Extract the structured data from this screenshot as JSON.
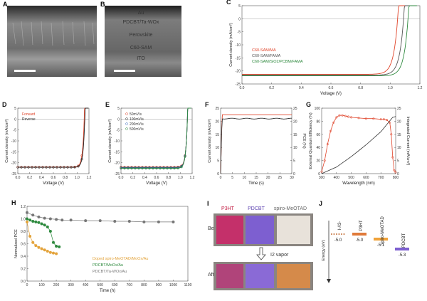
{
  "panel_letters": [
    "A",
    "B",
    "C",
    "D",
    "E",
    "F",
    "G",
    "H",
    "I",
    "J"
  ],
  "panel_a": {
    "layers": [
      "Au",
      "PDCBT/Ta-WOx",
      "Perovskite",
      "C60-SAM",
      "ITO"
    ]
  },
  "chart_data": [
    {
      "panel": "C",
      "type": "line",
      "xlabel": "Voltage (V)",
      "ylabel": "Current density (mA/cm²)",
      "xlim": [
        0.0,
        1.2
      ],
      "ylim": [
        -25,
        5
      ],
      "xticks": [
        "0.0",
        "0.2",
        "0.4",
        "0.6",
        "0.8",
        "1.0",
        "1.2"
      ],
      "yticks": [
        "-25",
        "-20",
        "-15",
        "-10",
        "-5",
        "0",
        "5"
      ],
      "series": [
        {
          "name": "C60-SAM/MA",
          "color": "#e0442a",
          "jsc": -21.3,
          "voc": 1.05
        },
        {
          "name": "C60-SAM/FAMA",
          "color": "#555555",
          "jsc": -21.6,
          "voc": 1.09
        },
        {
          "name": "C60-SAM/SiO2/PCBM/FAMA",
          "color": "#2f8a3f",
          "jsc": -21.9,
          "voc": 1.12
        }
      ]
    },
    {
      "panel": "D",
      "type": "line",
      "xlabel": "Voltage (V)",
      "ylabel": "Current density (mA/cm²)",
      "xlim": [
        0.0,
        1.2
      ],
      "ylim": [
        -25,
        5
      ],
      "xticks": [
        "0.0",
        "0.2",
        "0.4",
        "0.6",
        "0.8",
        "1.0",
        "1.2"
      ],
      "yticks": [
        "-25",
        "-20",
        "-15",
        "-10",
        "-5",
        "0",
        "5"
      ],
      "legend": [
        "Forward",
        "Reverse"
      ],
      "series": [
        {
          "name": "Forward",
          "color": "#e0442a",
          "jsc": -22.0,
          "voc": 1.12
        },
        {
          "name": "Reverse",
          "color": "#222222",
          "jsc": -22.1,
          "voc": 1.13
        }
      ]
    },
    {
      "panel": "E",
      "type": "line",
      "xlabel": "Voltage (V)",
      "ylabel": "Current density (mA/cm²)",
      "xlim": [
        0.0,
        1.2
      ],
      "ylim": [
        -25,
        5
      ],
      "xticks": [
        "0.0",
        "0.2",
        "0.4",
        "0.6",
        "0.8",
        "1.0",
        "1.2"
      ],
      "yticks": [
        "-25",
        "-20",
        "-15",
        "-10",
        "-5",
        "0",
        "5"
      ],
      "series": [
        {
          "name": "50mV/s",
          "color": "#e0442a",
          "jsc": -22.0,
          "voc": 1.12
        },
        {
          "name": "100mV/s",
          "color": "#333333",
          "jsc": -22.2,
          "voc": 1.12
        },
        {
          "name": "200mV/s",
          "color": "#3f6fc0",
          "jsc": -22.4,
          "voc": 1.12
        },
        {
          "name": "500mV/s",
          "color": "#2f8a3f",
          "jsc": -22.6,
          "voc": 1.12
        }
      ]
    },
    {
      "panel": "F",
      "type": "line",
      "xlabel": "Time (s)",
      "ylabel_left": "Current density (mA/cm²)",
      "ylabel_right": "PCE (%)",
      "xlim": [
        0,
        30
      ],
      "ylim": [
        0,
        25
      ],
      "xticks": [
        "0",
        "5",
        "10",
        "15",
        "20",
        "25",
        "30"
      ],
      "yticks": [
        "0",
        "5",
        "10",
        "15",
        "20",
        "25"
      ],
      "yticks_right": [
        "0",
        "5",
        "10",
        "15",
        "20",
        "25"
      ],
      "series": [
        {
          "name": "PCE",
          "color": "#e0442a",
          "steady": 22.5
        },
        {
          "name": "Current density",
          "color": "#333333",
          "steady": 21.0
        }
      ]
    },
    {
      "panel": "G",
      "type": "line",
      "xlabel": "Wavelength (nm)",
      "ylabel_left": "External Quantum Efficiency (%)",
      "ylabel_right": "Integrated Current (mA/cm²)",
      "xlim": [
        300,
        800
      ],
      "ylim": [
        0,
        100
      ],
      "ylim_right": [
        0,
        25
      ],
      "xticks": [
        "300",
        "400",
        "500",
        "600",
        "700",
        "800"
      ],
      "yticks": [
        "0",
        "20",
        "40",
        "60",
        "80",
        "100"
      ],
      "yticks_right": [
        "0",
        "5",
        "10",
        "15",
        "20",
        "25"
      ],
      "eqe": {
        "x": [
          300,
          320,
          340,
          360,
          380,
          400,
          420,
          440,
          460,
          480,
          500,
          550,
          600,
          650,
          700,
          720,
          740,
          760,
          770,
          780,
          790,
          800
        ],
        "y": [
          3,
          20,
          45,
          65,
          78,
          86,
          89,
          89,
          88,
          87,
          86,
          85,
          84,
          84,
          83,
          83,
          82,
          78,
          60,
          25,
          5,
          2
        ]
      },
      "integrated": {
        "x": [
          300,
          400,
          500,
          600,
          700,
          780,
          800
        ],
        "y": [
          0,
          2.5,
          6.5,
          11,
          16,
          21.5,
          21.8
        ]
      }
    },
    {
      "panel": "H",
      "type": "scatter",
      "xlabel": "Time (h)",
      "ylabel": "Normalized PCE",
      "xlim": [
        0,
        1100
      ],
      "ylim": [
        0.0,
        1.2
      ],
      "xticks": [
        "0",
        "100",
        "200",
        "300",
        "400",
        "500",
        "600",
        "700",
        "800",
        "900",
        "1000",
        "1100"
      ],
      "yticks": [
        "0.0",
        "0.2",
        "0.4",
        "0.6",
        "0.8",
        "1.0",
        "1.2"
      ],
      "series": [
        {
          "name": "Doped spiro-MeOTAD/MoOx/Au",
          "color": "#e3a33b",
          "x": [
            0,
            20,
            40,
            60,
            80,
            100,
            120,
            140,
            160,
            180,
            200
          ],
          "y": [
            0.95,
            0.72,
            0.62,
            0.57,
            0.54,
            0.52,
            0.5,
            0.48,
            0.46,
            0.45,
            0.44
          ]
        },
        {
          "name": "PDCBT/MoOx/Au",
          "color": "#2f8a3f",
          "x": [
            0,
            20,
            40,
            60,
            80,
            100,
            120,
            140,
            160,
            180,
            200,
            220
          ],
          "y": [
            1.0,
            0.98,
            0.96,
            0.95,
            0.94,
            0.92,
            0.9,
            0.87,
            0.8,
            0.62,
            0.56,
            0.55
          ]
        },
        {
          "name": "PDCBT/Ta-WOx/Au",
          "color": "#777777",
          "x": [
            0,
            40,
            80,
            120,
            160,
            200,
            240,
            300,
            400,
            500,
            600,
            700,
            800,
            900,
            1000
          ],
          "y": [
            1.1,
            1.06,
            1.03,
            1.01,
            1.0,
            0.99,
            0.98,
            0.98,
            0.97,
            0.97,
            0.96,
            0.96,
            0.95,
            0.95,
            0.95
          ]
        }
      ]
    },
    {
      "panel": "J",
      "type": "bar",
      "ylabel": "Energy (eV)",
      "categories": [
        "I-/I3-",
        "P3HT",
        "spiro-MeOTAD",
        "PDCBT"
      ],
      "values": [
        -5.0,
        -5.0,
        -5.1,
        -5.3
      ],
      "labels": [
        "-5.0",
        "-5.0",
        "-5.1",
        "-5.3"
      ]
    }
  ],
  "panel_i": {
    "columns": [
      "P3HT",
      "PDCBT",
      "spiro-MeOTAD"
    ],
    "rows": [
      "Before",
      "After"
    ],
    "arrow_label": "I2 vapor"
  }
}
